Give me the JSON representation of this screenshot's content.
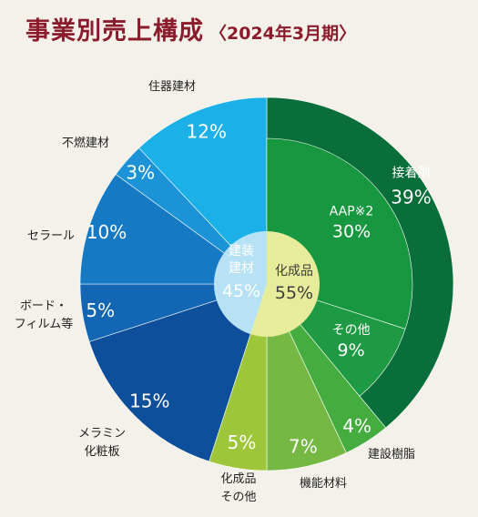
{
  "title": "事業別売上構成",
  "subtitle": "〈2024年3月期〉",
  "chart_data": {
    "type": "pie",
    "center": [
      {
        "name": "建装建材",
        "value": 45,
        "label_line1": "建装",
        "label_line2": "建材",
        "pct_text": "45%"
      },
      {
        "name": "化成品",
        "value": 55,
        "label_line1": "化成品",
        "pct_text": "55%"
      }
    ],
    "inner_segments": [
      {
        "name": "AAP※2",
        "value": 30,
        "pct_text": "30%",
        "color": "#17973f"
      },
      {
        "name": "その他",
        "value": 9,
        "pct_text": "9%",
        "color": "#1f9a44"
      }
    ],
    "slices": [
      {
        "name": "接着剤",
        "value": 39,
        "pct_text": "39%",
        "color": "#0a6e3a",
        "group": "化成品"
      },
      {
        "name": "建設樹脂",
        "value": 4,
        "pct_text": "4%",
        "color": "#45ad3f",
        "group": "化成品"
      },
      {
        "name": "機能材料",
        "value": 7,
        "pct_text": "7%",
        "color": "#75b843",
        "group": "化成品"
      },
      {
        "name": "化成品\nその他",
        "value": 5,
        "pct_text": "5%",
        "color": "#9ec63a",
        "group": "化成品"
      },
      {
        "name": "メラミン\n化粧板",
        "value": 15,
        "pct_text": "15%",
        "color": "#0d4f9a",
        "group": "建装建材"
      },
      {
        "name": "ボード・\nフィルム等",
        "value": 5,
        "pct_text": "5%",
        "color": "#1266b3",
        "group": "建装建材"
      },
      {
        "name": "セラール",
        "value": 10,
        "pct_text": "10%",
        "color": "#1679c4",
        "group": "建装建材"
      },
      {
        "name": "不燃建材",
        "value": 3,
        "pct_text": "3%",
        "color": "#1c93d6",
        "group": "建装建材"
      },
      {
        "name": "住器建材",
        "value": 12,
        "pct_text": "12%",
        "color": "#1bb0e8",
        "group": "建装建材"
      }
    ],
    "colors": {
      "center_left": "#b7e2f6",
      "center_right": "#e6ec9a",
      "background": "#f3f1ea",
      "title": "#8b1c2c"
    }
  }
}
